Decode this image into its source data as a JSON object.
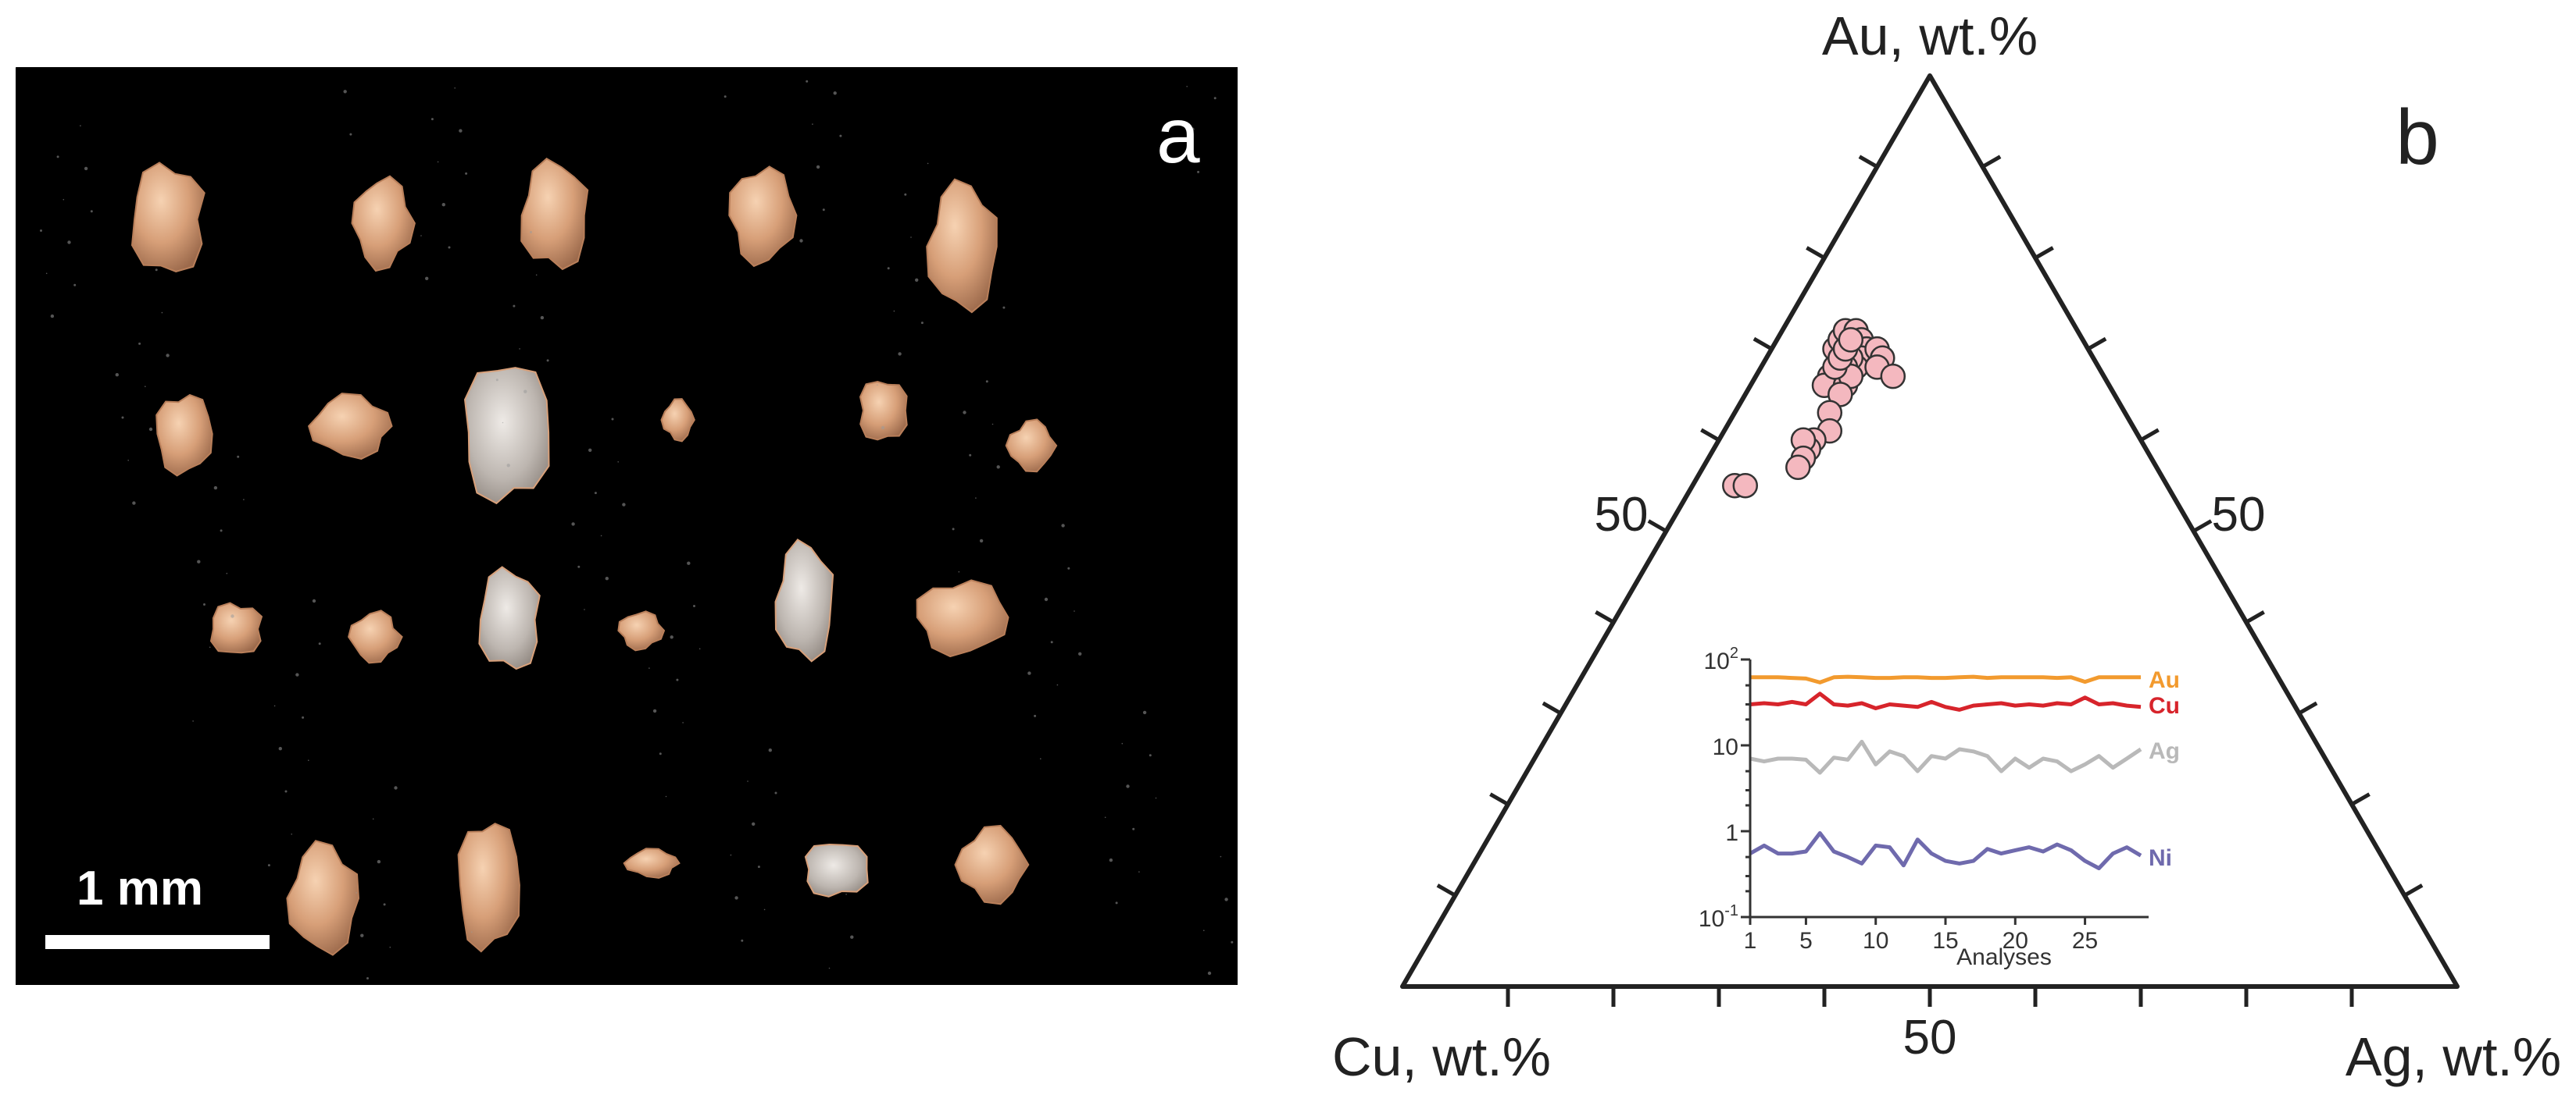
{
  "panel_a": {
    "label": "a",
    "scale_bar_label": "1 mm",
    "colors": {
      "background": "#000000",
      "grain": "#d9a27a",
      "grain_highlight": "#f2c9a6",
      "grain_silver": "#c8c2bd",
      "scale": "#ffffff"
    }
  },
  "panel_b": {
    "label": "b"
  },
  "chart_data": [
    {
      "type": "scatter",
      "subtype": "ternary",
      "axes": {
        "top": "Au, wt.%",
        "left": "Cu, wt.%",
        "right": "Ag, wt.%"
      },
      "tick_labels": {
        "left_edge": "50",
        "right_edge": "50",
        "bottom_edge": "50"
      },
      "ticks_per_edge": 10,
      "marker_color": "#f4b8bf",
      "marker_edge_color": "#333333",
      "points": [
        {
          "Au": 70,
          "Cu": 24,
          "Ag": 6
        },
        {
          "Au": 71,
          "Cu": 23,
          "Ag": 6
        },
        {
          "Au": 72,
          "Cu": 22,
          "Ag": 6
        },
        {
          "Au": 72,
          "Cu": 21,
          "Ag": 7
        },
        {
          "Au": 71,
          "Cu": 21,
          "Ag": 8
        },
        {
          "Au": 70,
          "Cu": 22,
          "Ag": 8
        },
        {
          "Au": 70,
          "Cu": 21,
          "Ag": 9
        },
        {
          "Au": 69,
          "Cu": 22,
          "Ag": 9
        },
        {
          "Au": 68,
          "Cu": 23,
          "Ag": 9
        },
        {
          "Au": 69,
          "Cu": 23,
          "Ag": 8
        },
        {
          "Au": 68,
          "Cu": 24,
          "Ag": 8
        },
        {
          "Au": 67,
          "Cu": 25,
          "Ag": 8
        },
        {
          "Au": 67,
          "Cu": 26,
          "Ag": 7
        },
        {
          "Au": 66,
          "Cu": 27,
          "Ag": 7
        },
        {
          "Au": 66,
          "Cu": 25,
          "Ag": 9
        },
        {
          "Au": 67,
          "Cu": 24,
          "Ag": 9
        },
        {
          "Au": 68,
          "Cu": 25,
          "Ag": 7
        },
        {
          "Au": 69,
          "Cu": 24,
          "Ag": 7
        },
        {
          "Au": 70,
          "Cu": 23,
          "Ag": 7
        },
        {
          "Au": 71,
          "Cu": 22,
          "Ag": 7
        },
        {
          "Au": 70,
          "Cu": 20,
          "Ag": 10
        },
        {
          "Au": 69,
          "Cu": 20,
          "Ag": 11
        },
        {
          "Au": 68,
          "Cu": 21,
          "Ag": 11
        },
        {
          "Au": 67,
          "Cu": 20,
          "Ag": 13
        },
        {
          "Au": 65,
          "Cu": 26,
          "Ag": 9
        },
        {
          "Au": 63,
          "Cu": 28,
          "Ag": 9
        },
        {
          "Au": 61,
          "Cu": 29,
          "Ag": 10
        },
        {
          "Au": 60,
          "Cu": 31,
          "Ag": 9
        },
        {
          "Au": 59,
          "Cu": 32,
          "Ag": 9
        },
        {
          "Au": 60,
          "Cu": 32,
          "Ag": 8
        },
        {
          "Au": 58,
          "Cu": 33,
          "Ag": 9
        },
        {
          "Au": 57,
          "Cu": 34,
          "Ag": 9
        },
        {
          "Au": 55,
          "Cu": 41,
          "Ag": 4
        },
        {
          "Au": 55,
          "Cu": 40,
          "Ag": 5
        }
      ]
    },
    {
      "type": "line",
      "scale": "log",
      "xlabel": "Analyses",
      "ylabel": "",
      "xlim": [
        1,
        29
      ],
      "ylim": [
        0.1,
        100
      ],
      "x_ticks": [
        "1",
        "5",
        "10",
        "15",
        "20",
        "25"
      ],
      "y_tick_labels": {
        "hundred": "10",
        "hundred_exp": "2",
        "ten": "10",
        "one": "1",
        "tenth": "10",
        "tenth_exp": "-1"
      },
      "series": [
        {
          "name": "Au",
          "color": "#f29a2e",
          "values": [
            62,
            62,
            62,
            61,
            60,
            54,
            62,
            63,
            62,
            61,
            61,
            62,
            62,
            61,
            61,
            62,
            63,
            61,
            62,
            62,
            62,
            62,
            61,
            62,
            55,
            62,
            62,
            62,
            62
          ]
        },
        {
          "name": "Cu",
          "color": "#d7242b",
          "values": [
            30,
            31,
            30,
            32,
            30,
            40,
            30,
            29,
            31,
            27,
            30,
            29,
            28,
            32,
            28,
            26,
            29,
            30,
            31,
            29,
            30,
            29,
            31,
            30,
            36,
            30,
            31,
            29,
            28
          ]
        },
        {
          "name": "Ag",
          "color": "#b9b9b9",
          "values": [
            7.0,
            6.5,
            7.0,
            7.0,
            6.8,
            4.8,
            7.2,
            6.8,
            11.0,
            6.0,
            8.5,
            7.5,
            5.0,
            7.5,
            7.0,
            9.0,
            8.5,
            7.5,
            5.0,
            7.0,
            5.5,
            7.0,
            6.5,
            5.0,
            6.0,
            7.5,
            5.5,
            7.0,
            9.0
          ]
        },
        {
          "name": "Ni",
          "color": "#6f6aad",
          "values": [
            0.55,
            0.68,
            0.55,
            0.55,
            0.58,
            0.95,
            0.58,
            0.5,
            0.42,
            0.68,
            0.65,
            0.4,
            0.8,
            0.55,
            0.45,
            0.42,
            0.45,
            0.62,
            0.55,
            0.6,
            0.65,
            0.58,
            0.7,
            0.6,
            0.45,
            0.37,
            0.55,
            0.65,
            0.52
          ]
        }
      ]
    }
  ]
}
